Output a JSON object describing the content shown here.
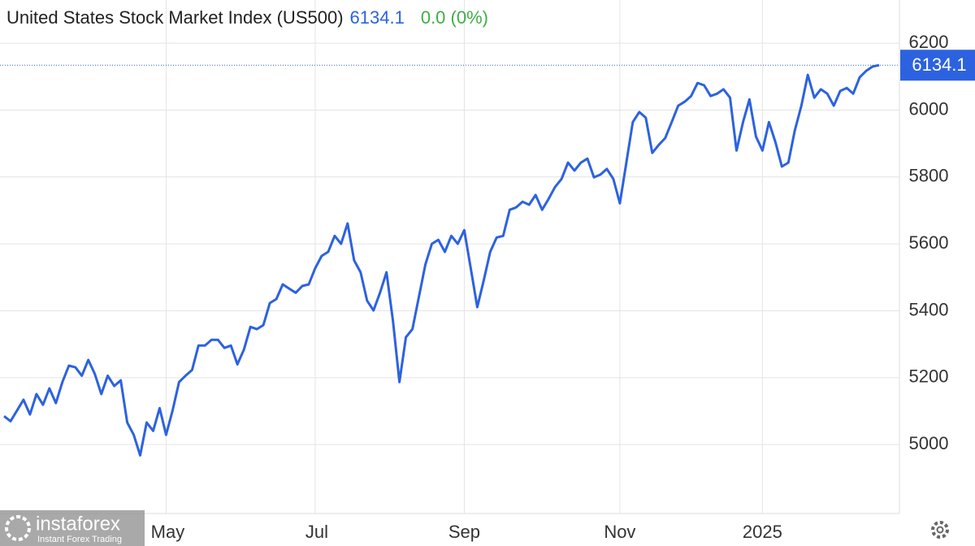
{
  "chart_data": {
    "type": "line",
    "title": "United States Stock Market Index (US500)",
    "change": "0.0 (0%)",
    "categories": [
      null,
      null,
      null,
      null,
      null,
      null,
      null,
      null,
      null,
      null,
      null,
      null,
      null,
      null,
      null,
      null,
      null,
      null,
      null,
      null,
      null,
      null,
      null,
      null,
      null,
      "May",
      null,
      null,
      null,
      null,
      null,
      null,
      null,
      null,
      null,
      null,
      null,
      null,
      null,
      null,
      null,
      null,
      null,
      null,
      null,
      null,
      null,
      null,
      "Jul",
      null,
      null,
      null,
      null,
      null,
      null,
      null,
      null,
      null,
      null,
      null,
      null,
      null,
      null,
      null,
      null,
      null,
      null,
      null,
      null,
      null,
      null,
      "Sep",
      null,
      null,
      null,
      null,
      null,
      null,
      null,
      null,
      null,
      null,
      null,
      null,
      null,
      null,
      null,
      null,
      null,
      null,
      null,
      null,
      null,
      null,
      null,
      "Nov",
      null,
      null,
      null,
      null,
      null,
      null,
      null,
      null,
      null,
      null,
      null,
      null,
      null,
      null,
      null,
      null,
      null,
      null,
      null,
      null,
      null,
      "2025",
      null,
      null,
      null,
      null,
      null,
      null,
      null,
      null,
      null,
      null,
      null,
      null,
      null,
      null,
      null,
      null,
      null,
      null
    ],
    "values": [
      5085,
      5070,
      5102,
      5134,
      5090,
      5151,
      5119,
      5168,
      5124,
      5187,
      5236,
      5231,
      5206,
      5253,
      5211,
      5151,
      5206,
      5175,
      5192,
      5066,
      5029,
      4968,
      5066,
      5041,
      5109,
      5029,
      5102,
      5187,
      5206,
      5223,
      5296,
      5296,
      5313,
      5313,
      5289,
      5296,
      5240,
      5284,
      5352,
      5345,
      5357,
      5423,
      5435,
      5479,
      5466,
      5454,
      5474,
      5479,
      5527,
      5564,
      5576,
      5624,
      5600,
      5661,
      5551,
      5515,
      5430,
      5401,
      5454,
      5515,
      5369,
      5187,
      5321,
      5345,
      5442,
      5539,
      5600,
      5612,
      5576,
      5624,
      5600,
      5641,
      5527,
      5411,
      5491,
      5576,
      5619,
      5624,
      5702,
      5709,
      5726,
      5717,
      5746,
      5702,
      5734,
      5770,
      5794,
      5843,
      5819,
      5843,
      5855,
      5799,
      5807,
      5824,
      5794,
      5721,
      5843,
      5964,
      5994,
      5977,
      5872,
      5896,
      5916,
      5964,
      6013,
      6025,
      6042,
      6081,
      6074,
      6042,
      6049,
      6062,
      6037,
      5879,
      5964,
      6032,
      5921,
      5879,
      5964,
      5904,
      5831,
      5843,
      5940,
      6013,
      6105,
      6037,
      6062,
      6049,
      6013,
      6057,
      6066,
      6049,
      6098,
      6117,
      6130,
      6134.1
    ],
    "color": "#2c62e0",
    "ylim": [
      4794,
      6329
    ],
    "yticks": [
      5000,
      5200,
      5400,
      5600,
      5800,
      6000,
      6200
    ],
    "grid": true
  },
  "watermark": {
    "name": "instaforex",
    "tagline": "Instant Forex Trading"
  }
}
